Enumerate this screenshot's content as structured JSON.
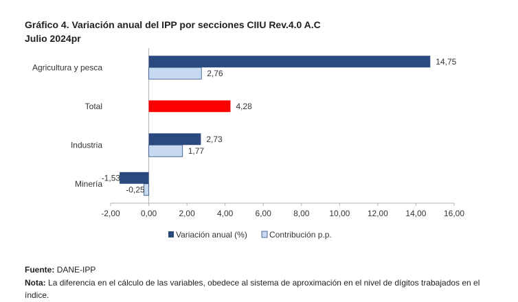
{
  "title": "Gráfico 4. Variación anual del IPP por secciones CIIU Rev.4.0 A.C",
  "subtitle": "Julio 2024pr",
  "chart_data": {
    "type": "bar",
    "orientation": "horizontal",
    "categories": [
      "Agricultura y pesca",
      "Total",
      "Industria",
      "Minería"
    ],
    "series": [
      {
        "name": "Variación anual (%)",
        "values": [
          14.75,
          4.28,
          2.73,
          -1.53
        ],
        "color": "#2a4a7f",
        "labels": [
          "14,75",
          "4,28",
          "2,73",
          "-1,53"
        ]
      },
      {
        "name": "Contribución p.p.",
        "values": [
          2.76,
          null,
          1.77,
          -0.25
        ],
        "color": "#c6d9f1",
        "labels": [
          "2,76",
          "",
          "1,77",
          "-0,25"
        ]
      }
    ],
    "highlight": {
      "category": "Total",
      "color": "#ff0000"
    },
    "xlim": [
      -2,
      16
    ],
    "xticks": [
      -2,
      0,
      2,
      4,
      6,
      8,
      10,
      12,
      14,
      16
    ],
    "xtick_labels": [
      "-2,00",
      "0,00",
      "2,00",
      "4,00",
      "6,00",
      "8,00",
      "10,00",
      "12,00",
      "14,00",
      "16,00"
    ],
    "legend_position": "bottom"
  },
  "footer": {
    "source_label": "Fuente:",
    "source_text": "DANE-IPP",
    "note_label": "Nota:",
    "note_text": "La diferencia en el cálculo de las variables, obedece al sistema de aproximación en el nivel de dígitos trabajados en el índice."
  }
}
